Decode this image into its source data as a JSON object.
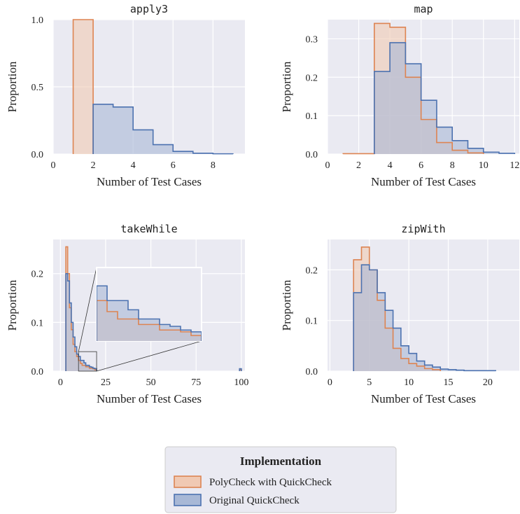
{
  "colors": {
    "polycheck": "#dd8452",
    "polycheck_fill": "#f0c9b3",
    "original": "#4c72b0",
    "original_fill": "#a8b8d6",
    "overlap_fill": "#c6b8c4",
    "plot_bg": "#eaeaf2",
    "grid": "#ffffff"
  },
  "legend": {
    "title": "Implementation",
    "items": [
      {
        "name": "PolyCheck with QuickCheck",
        "key": "polycheck"
      },
      {
        "name": "Original QuickCheck",
        "key": "original"
      }
    ]
  },
  "chart_data": [
    {
      "type": "histogram",
      "title": "apply3",
      "xlabel": "Number of Test Cases",
      "ylabel": "Proportion",
      "xlim": [
        0,
        9.6
      ],
      "ylim": [
        0,
        1.0
      ],
      "xticks": [
        0,
        2,
        4,
        6,
        8
      ],
      "yticks": [
        0.0,
        0.5,
        1.0
      ],
      "ytick_labels": [
        "0.0",
        "0.5",
        "1.0"
      ],
      "grid": true,
      "series": [
        {
          "name": "PolyCheck with QuickCheck",
          "key": "polycheck",
          "bins": [
            [
              1,
              2,
              1.0
            ]
          ]
        },
        {
          "name": "Original QuickCheck",
          "key": "original",
          "bins": [
            [
              2,
              3,
              0.37
            ],
            [
              3,
              4,
              0.35
            ],
            [
              4,
              5,
              0.18
            ],
            [
              5,
              6,
              0.07
            ],
            [
              6,
              7,
              0.02
            ],
            [
              7,
              8,
              0.006
            ],
            [
              8,
              9,
              0.002
            ]
          ]
        }
      ]
    },
    {
      "type": "histogram",
      "title": "map",
      "xlabel": "Number of Test Cases",
      "ylabel": "Proportion",
      "xlim": [
        0,
        12.3
      ],
      "ylim": [
        0,
        0.35
      ],
      "xticks": [
        0,
        2,
        4,
        6,
        8,
        10,
        12
      ],
      "yticks": [
        0.0,
        0.1,
        0.2,
        0.3
      ],
      "ytick_labels": [
        "0.0",
        "0.1",
        "0.2",
        "0.3"
      ],
      "grid": true,
      "series": [
        {
          "name": "PolyCheck with QuickCheck",
          "key": "polycheck",
          "bins": [
            [
              1,
              2,
              0.001
            ],
            [
              2,
              3,
              0.001
            ],
            [
              3,
              4,
              0.34
            ],
            [
              4,
              5,
              0.33
            ],
            [
              5,
              6,
              0.2
            ],
            [
              6,
              7,
              0.09
            ],
            [
              7,
              8,
              0.03
            ],
            [
              8,
              9,
              0.01
            ],
            [
              9,
              10,
              0.003
            ]
          ]
        },
        {
          "name": "Original QuickCheck",
          "key": "original",
          "bins": [
            [
              3,
              4,
              0.215
            ],
            [
              4,
              5,
              0.29
            ],
            [
              5,
              6,
              0.235
            ],
            [
              6,
              7,
              0.14
            ],
            [
              7,
              8,
              0.07
            ],
            [
              8,
              9,
              0.035
            ],
            [
              9,
              10,
              0.015
            ],
            [
              10,
              11,
              0.005
            ],
            [
              11,
              12,
              0.002
            ]
          ]
        }
      ]
    },
    {
      "type": "histogram",
      "title": "takeWhile",
      "xlabel": "Number of Test Cases",
      "ylabel": "Proportion",
      "xlim": [
        -4,
        102
      ],
      "ylim": [
        0,
        0.27
      ],
      "xticks": [
        0,
        25,
        50,
        75,
        100
      ],
      "yticks": [
        0.0,
        0.1,
        0.2
      ],
      "ytick_labels": [
        "0.0",
        "0.1",
        "0.2"
      ],
      "grid": true,
      "inset": {
        "zoom_x": [
          10,
          20
        ],
        "zoom_y": [
          0,
          0.04
        ]
      },
      "series": [
        {
          "name": "PolyCheck with QuickCheck",
          "key": "polycheck",
          "bins": [
            [
              3,
              4,
              0.255
            ],
            [
              4,
              5,
              0.2
            ],
            [
              5,
              6,
              0.13
            ],
            [
              6,
              7,
              0.085
            ],
            [
              7,
              8,
              0.055
            ],
            [
              8,
              9,
              0.04
            ],
            [
              9,
              10,
              0.03
            ],
            [
              10,
              11,
              0.022
            ],
            [
              11,
              12,
              0.016
            ],
            [
              12,
              13,
              0.012
            ],
            [
              13,
              14,
              0.012
            ],
            [
              14,
              15,
              0.009
            ],
            [
              15,
              16,
              0.009
            ],
            [
              16,
              17,
              0.006
            ],
            [
              17,
              18,
              0.006
            ],
            [
              18,
              19,
              0.005
            ],
            [
              19,
              20,
              0.003
            ],
            [
              99,
              100,
              0.003
            ]
          ]
        },
        {
          "name": "Original QuickCheck",
          "key": "original",
          "bins": [
            [
              3,
              4,
              0.2
            ],
            [
              4,
              5,
              0.185
            ],
            [
              5,
              6,
              0.14
            ],
            [
              6,
              7,
              0.1
            ],
            [
              7,
              8,
              0.07
            ],
            [
              8,
              9,
              0.05
            ],
            [
              9,
              10,
              0.035
            ],
            [
              10,
              11,
              0.03
            ],
            [
              11,
              12,
              0.022
            ],
            [
              12,
              13,
              0.022
            ],
            [
              13,
              14,
              0.017
            ],
            [
              14,
              15,
              0.012
            ],
            [
              15,
              16,
              0.012
            ],
            [
              16,
              17,
              0.009
            ],
            [
              17,
              18,
              0.008
            ],
            [
              18,
              19,
              0.006
            ],
            [
              19,
              20,
              0.005
            ],
            [
              99,
              100,
              0.005
            ]
          ]
        }
      ]
    },
    {
      "type": "histogram",
      "title": "zipWith",
      "xlabel": "Number of Test Cases",
      "ylabel": "Proportion",
      "xlim": [
        -0.3,
        24
      ],
      "ylim": [
        0,
        0.26
      ],
      "xticks": [
        0,
        5,
        10,
        15,
        20
      ],
      "yticks": [
        0.0,
        0.1,
        0.2
      ],
      "ytick_labels": [
        "0.0",
        "0.1",
        "0.2"
      ],
      "grid": true,
      "series": [
        {
          "name": "PolyCheck with QuickCheck",
          "key": "polycheck",
          "bins": [
            [
              3,
              4,
              0.22
            ],
            [
              4,
              5,
              0.245
            ],
            [
              5,
              6,
              0.2
            ],
            [
              6,
              7,
              0.14
            ],
            [
              7,
              8,
              0.085
            ],
            [
              8,
              9,
              0.045
            ],
            [
              9,
              10,
              0.025
            ],
            [
              10,
              11,
              0.015
            ],
            [
              11,
              12,
              0.01
            ],
            [
              12,
              13,
              0.005
            ],
            [
              13,
              14,
              0.003
            ]
          ]
        },
        {
          "name": "Original QuickCheck",
          "key": "original",
          "bins": [
            [
              3,
              4,
              0.155
            ],
            [
              4,
              5,
              0.21
            ],
            [
              5,
              6,
              0.2
            ],
            [
              6,
              7,
              0.155
            ],
            [
              7,
              8,
              0.12
            ],
            [
              8,
              9,
              0.085
            ],
            [
              9,
              10,
              0.05
            ],
            [
              10,
              11,
              0.035
            ],
            [
              11,
              12,
              0.02
            ],
            [
              12,
              13,
              0.012
            ],
            [
              13,
              14,
              0.008
            ],
            [
              14,
              15,
              0.004
            ],
            [
              15,
              16,
              0.003
            ],
            [
              16,
              17,
              0.002
            ],
            [
              17,
              18,
              0.001
            ],
            [
              18,
              19,
              0.001
            ],
            [
              19,
              20,
              0.001
            ],
            [
              20,
              21,
              0.001
            ]
          ]
        }
      ]
    }
  ]
}
